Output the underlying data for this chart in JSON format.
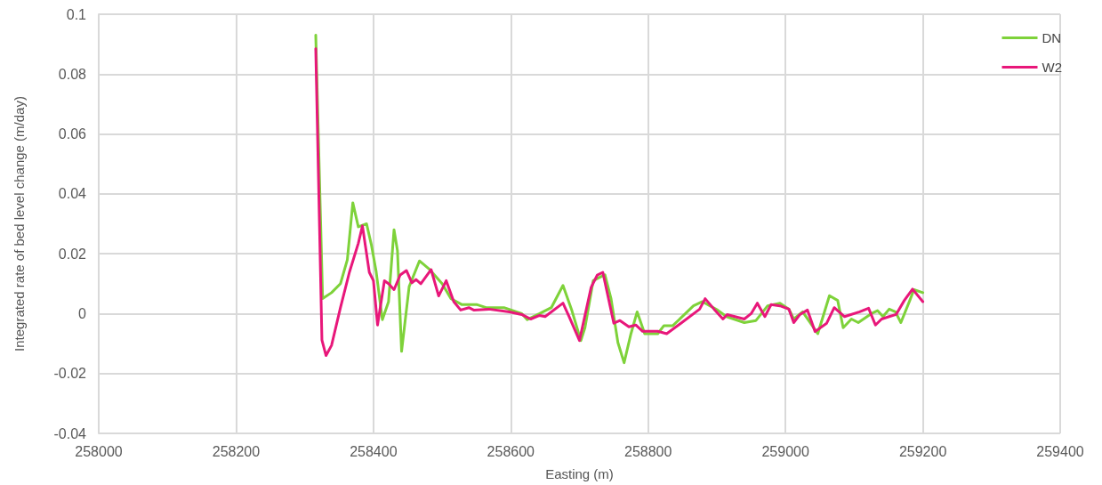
{
  "chart_data": {
    "type": "line",
    "xlabel": "Easting (m)",
    "ylabel": "Integrated rate of bed level change (m/day)",
    "xlim": [
      258000,
      259400
    ],
    "xticks": [
      258000,
      258200,
      258400,
      258600,
      258800,
      259000,
      259200,
      259400
    ],
    "ylim": [
      -0.04,
      0.1
    ],
    "yticks": [
      -0.04,
      -0.02,
      0,
      0.02,
      0.04,
      0.06,
      0.08,
      0.1
    ],
    "grid": true,
    "legend": "top right",
    "marker": "none",
    "line_style": "solid",
    "series": [
      {
        "name": "DN",
        "color": "#7ed23a",
        "x": [
          258316,
          258326,
          258339,
          258352,
          258362,
          258370,
          258378,
          258390,
          258397,
          258404,
          258413,
          258422,
          258430,
          258435,
          258441,
          258452,
          258467,
          258482,
          258500,
          258513,
          258529,
          258551,
          258564,
          258590,
          258616,
          258624,
          258642,
          258659,
          258676,
          258689,
          258702,
          258708,
          258720,
          258737,
          258746,
          258756,
          258765,
          258775,
          258784,
          258795,
          258814,
          258823,
          258836,
          258866,
          258879,
          258901,
          258914,
          258940,
          258957,
          258974,
          258992,
          259005,
          259012,
          259025,
          259047,
          259064,
          259076,
          259084,
          259096,
          259106,
          259125,
          259134,
          259142,
          259151,
          259160,
          259168,
          259181,
          259187,
          259200
        ],
        "values": [
          0.093,
          0.005,
          0.007,
          0.01,
          0.018,
          0.037,
          0.029,
          0.03,
          0.023,
          0.014,
          -0.002,
          0.004,
          0.028,
          0.021,
          -0.0126,
          0.009,
          0.0176,
          0.0147,
          0.01,
          0.005,
          0.003,
          0.003,
          0.002,
          0.002,
          0,
          -0.002,
          0,
          0.002,
          0.0094,
          0.001,
          -0.009,
          -0.0047,
          0.011,
          0.013,
          0.005,
          -0.0097,
          -0.0164,
          -0.0067,
          0.0006,
          -0.0067,
          -0.0067,
          -0.004,
          -0.004,
          0.0026,
          0.004,
          0.0012,
          -0.001,
          -0.003,
          -0.0023,
          0.0026,
          0.0035,
          0.0015,
          -0.0018,
          0.0006,
          -0.0067,
          0.006,
          0.0044,
          -0.0047,
          -0.0018,
          -0.003,
          0,
          0.001,
          -0.001,
          0.0015,
          0.0006,
          -0.003,
          0.0044,
          0.008,
          0.007
        ]
      },
      {
        "name": "W2",
        "color": "#e8177a",
        "x": [
          258316,
          258325,
          258331,
          258339,
          258352,
          258365,
          258378,
          258384,
          258394,
          258400,
          258406,
          258416,
          258422,
          258430,
          258439,
          258448,
          258456,
          258462,
          258469,
          258484,
          258495,
          258506,
          258517,
          258527,
          258539,
          258546,
          258568,
          258598,
          258616,
          258629,
          258642,
          258650,
          258676,
          258685,
          258700,
          258717,
          258726,
          258734,
          258750,
          258759,
          258772,
          258782,
          258792,
          258814,
          258827,
          258849,
          258875,
          258883,
          258896,
          258909,
          258915,
          258940,
          258950,
          258959,
          258970,
          258979,
          258992,
          259005,
          259012,
          259021,
          259032,
          259043,
          259060,
          259071,
          259086,
          259108,
          259121,
          259131,
          259140,
          259151,
          259161,
          259173,
          259185,
          259200
        ],
        "values": [
          0.0885,
          -0.0088,
          -0.014,
          -0.0106,
          0.002,
          0.0138,
          0.0235,
          0.0293,
          0.0138,
          0.011,
          -0.0038,
          0.011,
          0.01,
          0.008,
          0.0129,
          0.0144,
          0.0103,
          0.0114,
          0.01,
          0.0147,
          0.0059,
          0.011,
          0.004,
          0.0012,
          0.002,
          0.0012,
          0.0015,
          0.0006,
          -0.0003,
          -0.0018,
          -0.0006,
          -0.001,
          0.0035,
          -0.001,
          -0.009,
          0.0088,
          0.0129,
          0.0138,
          -0.0032,
          -0.0023,
          -0.0044,
          -0.0038,
          -0.0059,
          -0.0059,
          -0.0067,
          -0.003,
          0.0015,
          0.005,
          0.0015,
          -0.0018,
          -0.0003,
          -0.0018,
          0,
          0.0035,
          -0.001,
          0.003,
          0.0026,
          0.0015,
          -0.003,
          -0.0003,
          0.0012,
          -0.006,
          -0.0032,
          0.002,
          -0.001,
          0.0006,
          0.0018,
          -0.0038,
          -0.0018,
          -0.001,
          -0.0003,
          0.0044,
          0.0082,
          0.004
        ]
      }
    ]
  }
}
